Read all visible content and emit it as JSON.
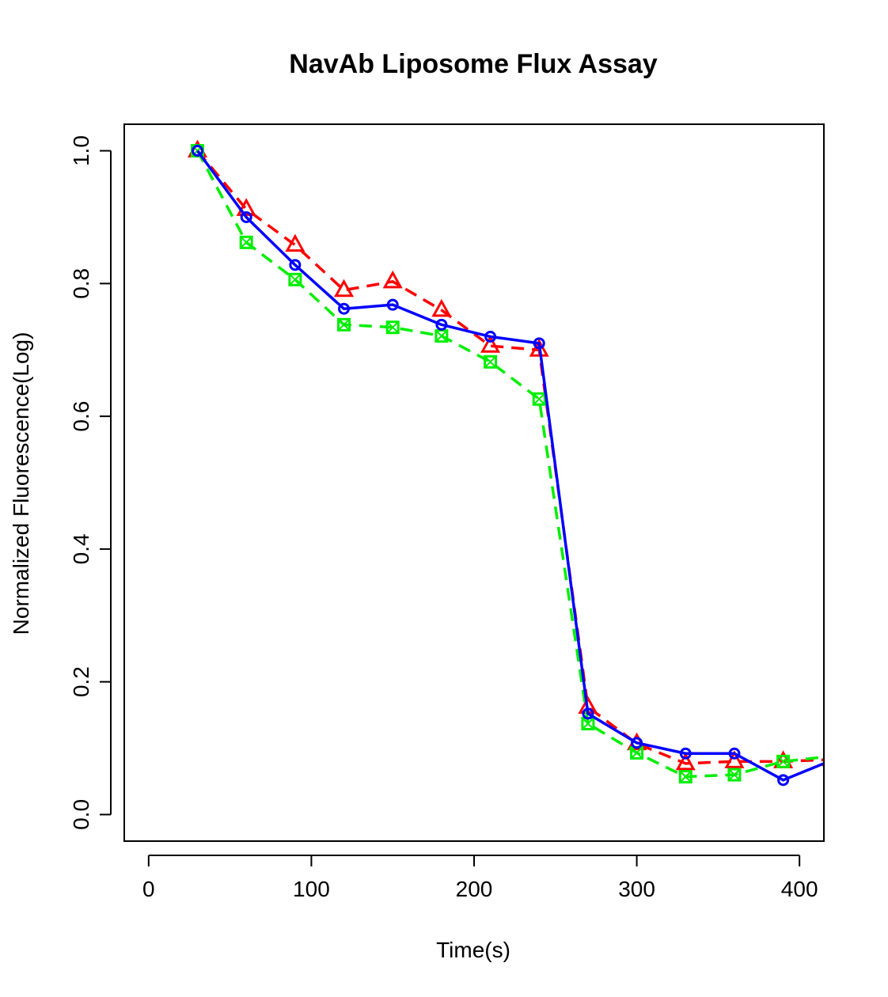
{
  "chart_data": {
    "type": "line",
    "title": "NavAb Liposome Flux Assay",
    "xlabel": "Time(s)",
    "ylabel": "Normalized Fluorescence(Log)",
    "xlim": [
      -15,
      415
    ],
    "ylim": [
      -0.04,
      1.04
    ],
    "x_ticks": [
      0,
      100,
      200,
      300,
      400
    ],
    "y_ticks": [
      0.0,
      0.2,
      0.4,
      0.6,
      0.8,
      1.0
    ],
    "x_tick_labels": [
      "0",
      "100",
      "200",
      "300",
      "400"
    ],
    "y_tick_labels": [
      "0.0",
      "0.2",
      "0.4",
      "0.6",
      "0.8",
      "1.0"
    ],
    "grid": false,
    "legend": "none",
    "x": [
      30,
      60,
      90,
      120,
      150,
      180,
      210,
      240,
      270,
      300,
      330,
      360,
      390,
      420
    ],
    "series": [
      {
        "color": "#ff0000",
        "line_style": "dashed",
        "marker": "triangle",
        "values": [
          1.0,
          0.912,
          0.858,
          0.79,
          0.803,
          0.76,
          0.706,
          0.7,
          0.162,
          0.107,
          0.077,
          0.08,
          0.08,
          0.083
        ]
      },
      {
        "color": "#00ee00",
        "line_style": "dashed",
        "marker": "square-x",
        "values": [
          1.0,
          0.862,
          0.806,
          0.738,
          0.734,
          0.721,
          0.682,
          0.626,
          0.137,
          0.093,
          0.057,
          0.06,
          0.08,
          0.088
        ]
      },
      {
        "color": "#0000ff",
        "line_style": "solid",
        "marker": "circle",
        "values": [
          1.0,
          0.9,
          0.828,
          0.762,
          0.768,
          0.738,
          0.72,
          0.71,
          0.152,
          0.108,
          0.092,
          0.092,
          0.052,
          0.082
        ]
      }
    ]
  }
}
